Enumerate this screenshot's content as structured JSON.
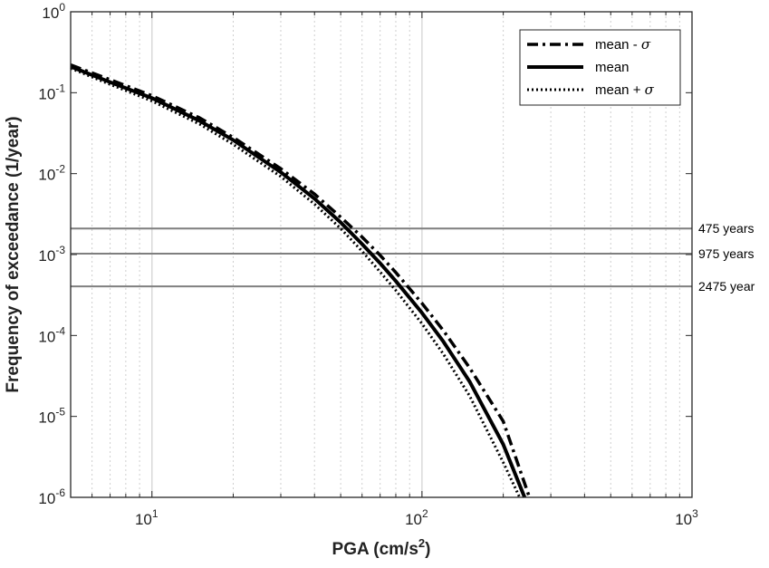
{
  "chart_data": {
    "type": "line",
    "title": "",
    "xlabel": "PGA (cm/s",
    "xlabel_superscript": "2",
    "xlabel_suffix": ")",
    "ylabel": "Frequency of exceedance (1/year)",
    "x_scale": "log",
    "y_scale": "log",
    "xlim": [
      5,
      1000
    ],
    "ylim": [
      1e-06,
      1
    ],
    "x_ticks": [
      {
        "base": "10",
        "exp": "1",
        "value": 10
      },
      {
        "base": "10",
        "exp": "2",
        "value": 100
      },
      {
        "base": "10",
        "exp": "3",
        "value": 1000
      }
    ],
    "y_ticks": [
      {
        "base": "10",
        "exp": "0",
        "value": 1
      },
      {
        "base": "10",
        "exp": "-1",
        "value": 0.1
      },
      {
        "base": "10",
        "exp": "-2",
        "value": 0.01
      },
      {
        "base": "10",
        "exp": "-3",
        "value": 0.001
      },
      {
        "base": "10",
        "exp": "-4",
        "value": 0.0001
      },
      {
        "base": "10",
        "exp": "-5",
        "value": 1e-05
      },
      {
        "base": "10",
        "exp": "-6",
        "value": 1e-06
      }
    ],
    "grid": "minor vertical dotted, major vertical solid",
    "legend_position": "top-right",
    "series": [
      {
        "name": "mean - σ",
        "legend_base": "mean - ",
        "legend_symbol": "σ",
        "style": "dashdot",
        "x": [
          5,
          7,
          10,
          15,
          20,
          30,
          40,
          50,
          60,
          70,
          80,
          100,
          120,
          150,
          200,
          250
        ],
        "y": [
          0.22,
          0.145,
          0.092,
          0.049,
          0.028,
          0.0115,
          0.0056,
          0.0029,
          0.00165,
          0.00098,
          0.0006,
          0.00025,
          0.000115,
          4e-05,
          8.7e-06,
          1e-06
        ]
      },
      {
        "name": "mean",
        "legend_base": "mean",
        "legend_symbol": "",
        "style": "solid",
        "x": [
          5,
          7,
          10,
          15,
          20,
          30,
          40,
          50,
          60,
          70,
          80,
          100,
          120,
          150,
          200,
          240
        ],
        "y": [
          0.21,
          0.135,
          0.086,
          0.045,
          0.026,
          0.0104,
          0.0049,
          0.0025,
          0.00135,
          0.00078,
          0.00047,
          0.00019,
          8.4e-05,
          2.7e-05,
          4.5e-06,
          1e-06
        ]
      },
      {
        "name": "mean + σ",
        "legend_base": "mean + ",
        "legend_symbol": "σ",
        "style": "dotted",
        "x": [
          5,
          7,
          10,
          15,
          20,
          30,
          40,
          50,
          60,
          70,
          80,
          100,
          120,
          150,
          200,
          230
        ],
        "y": [
          0.2,
          0.127,
          0.079,
          0.041,
          0.023,
          0.0092,
          0.0042,
          0.0021,
          0.0011,
          0.00061,
          0.00036,
          0.00014,
          5.9e-05,
          1.8e-05,
          2.7e-06,
          1e-06
        ]
      }
    ],
    "reference_lines": [
      {
        "y": 0.0021,
        "label": "475 years"
      },
      {
        "y": 0.001026,
        "label": "975 years"
      },
      {
        "y": 0.000404,
        "label": "2475 year"
      }
    ]
  }
}
